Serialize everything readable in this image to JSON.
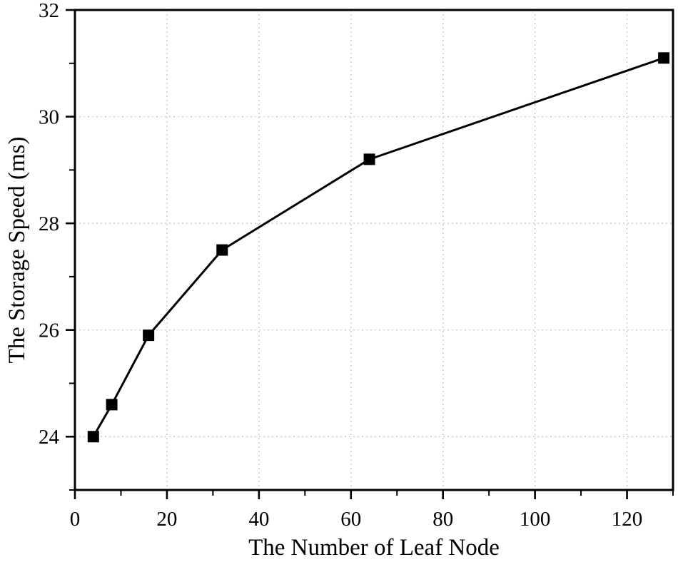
{
  "figure": {
    "background": "#ffffff",
    "frame_color": "#000000",
    "grid_color": "#bdbdbd",
    "line_color": "#000000",
    "marker_color": "#000000"
  },
  "chart_data": {
    "type": "line",
    "xlabel": "The Number of Leaf Node",
    "ylabel": "The Storage Speed (ms)",
    "x": [
      4,
      8,
      16,
      32,
      64,
      128
    ],
    "y": [
      24.0,
      24.6,
      25.9,
      27.5,
      29.2,
      31.1
    ],
    "xlim": [
      0,
      130
    ],
    "ylim": [
      23,
      32
    ],
    "x_major_ticks": [
      0,
      20,
      40,
      60,
      80,
      100,
      120
    ],
    "x_minor_ticks": [
      10,
      30,
      50,
      70,
      90,
      110,
      130
    ],
    "y_major_ticks": [
      24,
      26,
      28,
      30,
      32
    ],
    "y_minor_ticks": [
      23,
      25,
      27,
      29,
      31
    ],
    "x_tick_labels": [
      "0",
      "20",
      "40",
      "60",
      "80",
      "100",
      "120"
    ],
    "y_tick_labels": [
      "24",
      "26",
      "28",
      "30",
      "32"
    ],
    "grid": "dashed-on-major-ticks",
    "legend": "none",
    "marker": "filled-square"
  }
}
